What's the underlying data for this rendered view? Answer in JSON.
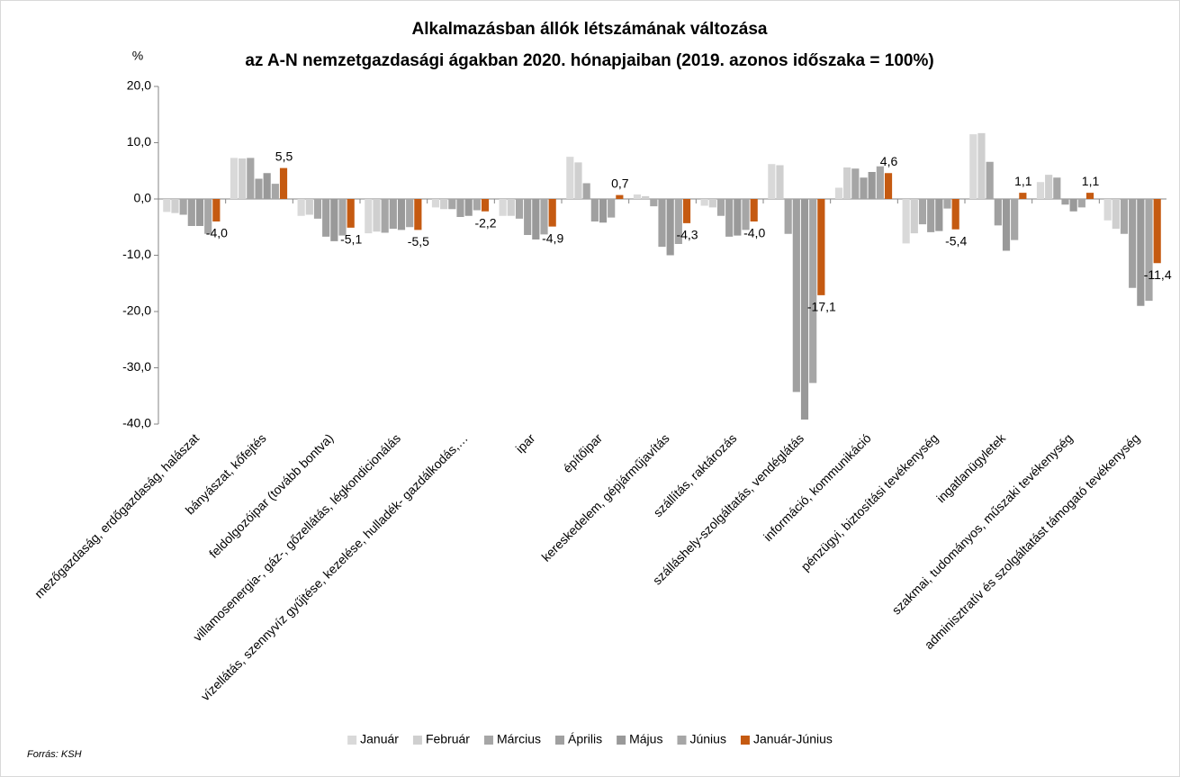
{
  "chart_data": {
    "type": "bar",
    "title": [
      "Alkalmazásban állók létszámának változása",
      "az A-N nemzetgazdasági ágakban 2020. hónapjaiban (2019. azonos időszaka = 100%)"
    ],
    "y_unit": "%",
    "source": "Forrás: KSH",
    "categories": [
      "mezőgazdaság, erdőgazdaság, halászat",
      "bányászat, kőfejtés",
      "feldolgozóipar (tovább bontva)",
      "villamosenergia-, gáz-, gőzellátás, légkondicionálás",
      "vízellátás, szennyvíz gyűjtése, kezelése, hulladék- gazdálkodás,…",
      "ipar",
      "építőipar",
      "kereskedelem, gépjárműjavítás",
      "szállítás, raktározás",
      "szálláshely-szolgáltatás, vendéglátás",
      "információ, kommunikáció",
      "pénzügyi, biztosítási tevékenység",
      "ingatlanügyletek",
      "szakmai, tudományos, műszaki tevékenység",
      "adminisztratív és szolgáltatást támogató tevékenység"
    ],
    "series": [
      {
        "name": "Január",
        "color": "#d9d9d9",
        "values": [
          -2.3,
          7.3,
          -3,
          -6.1,
          -1.5,
          -3,
          7.5,
          0.8,
          -1.2,
          6.2,
          2,
          -7.9,
          11.5,
          3,
          -3.8
        ]
      },
      {
        "name": "Február",
        "color": "#cfcfcf",
        "values": [
          -2.5,
          7.2,
          -2.8,
          -5.8,
          -1.8,
          -3,
          6.5,
          0.5,
          -1.5,
          6,
          5.6,
          -6.1,
          11.7,
          4.3,
          -5.3
        ]
      },
      {
        "name": "Március",
        "color": "#a6a6a6",
        "values": [
          -2.8,
          7.3,
          -3.5,
          -6,
          -1.8,
          -3.5,
          2.8,
          -1.3,
          -3,
          -6.2,
          5.4,
          -4.5,
          6.6,
          3.8,
          -6.2
        ]
      },
      {
        "name": "Április",
        "color": "#a0a0a0",
        "values": [
          -4.8,
          3.6,
          -6.7,
          -5.3,
          -3.2,
          -6.4,
          -4,
          -8.5,
          -6.7,
          -34.3,
          3.8,
          -5.9,
          -4.7,
          -1,
          -15.8
        ]
      },
      {
        "name": "Május",
        "color": "#999999",
        "values": [
          -4.8,
          4.6,
          -7.5,
          -5.5,
          -3,
          -7.2,
          -4.2,
          -10,
          -6.5,
          -39.2,
          4.8,
          -5.7,
          -9.2,
          -2.2,
          -19
        ]
      },
      {
        "name": "Június",
        "color": "#a6a6a6",
        "values": [
          -6.2,
          2.7,
          -6.5,
          -5,
          -2,
          -6.3,
          -3.3,
          -8,
          -5.5,
          -32.7,
          5.8,
          -1.7,
          -7.3,
          -1.5,
          -18.1
        ]
      },
      {
        "name": "Január-Június",
        "color": "#c55a11",
        "values": [
          -4.0,
          5.5,
          -5.1,
          -5.5,
          -2.2,
          -4.9,
          0.7,
          -4.3,
          -4.0,
          -17.1,
          4.6,
          -5.4,
          1.1,
          1.1,
          -11.4
        ],
        "value_labels": [
          "-4,0",
          "5,5",
          "-5,1",
          "-5,5",
          "-2,2",
          "-4,9",
          "0,7",
          "-4,3",
          "-4,0",
          "-17,1",
          "4,6",
          "-5,4",
          "1,1",
          "1,1",
          "-11,4"
        ]
      }
    ],
    "ylim": [
      -40,
      20
    ],
    "yticks": [
      {
        "value": -40,
        "label": "-40,0"
      },
      {
        "value": -30,
        "label": "-30,0"
      },
      {
        "value": -20,
        "label": "-20,0"
      },
      {
        "value": -10,
        "label": "-10,0"
      },
      {
        "value": 0,
        "label": "0,0"
      },
      {
        "value": 10,
        "label": "10,0"
      },
      {
        "value": 20,
        "label": "20,0"
      }
    ],
    "grid": false,
    "legend": "bottom"
  }
}
